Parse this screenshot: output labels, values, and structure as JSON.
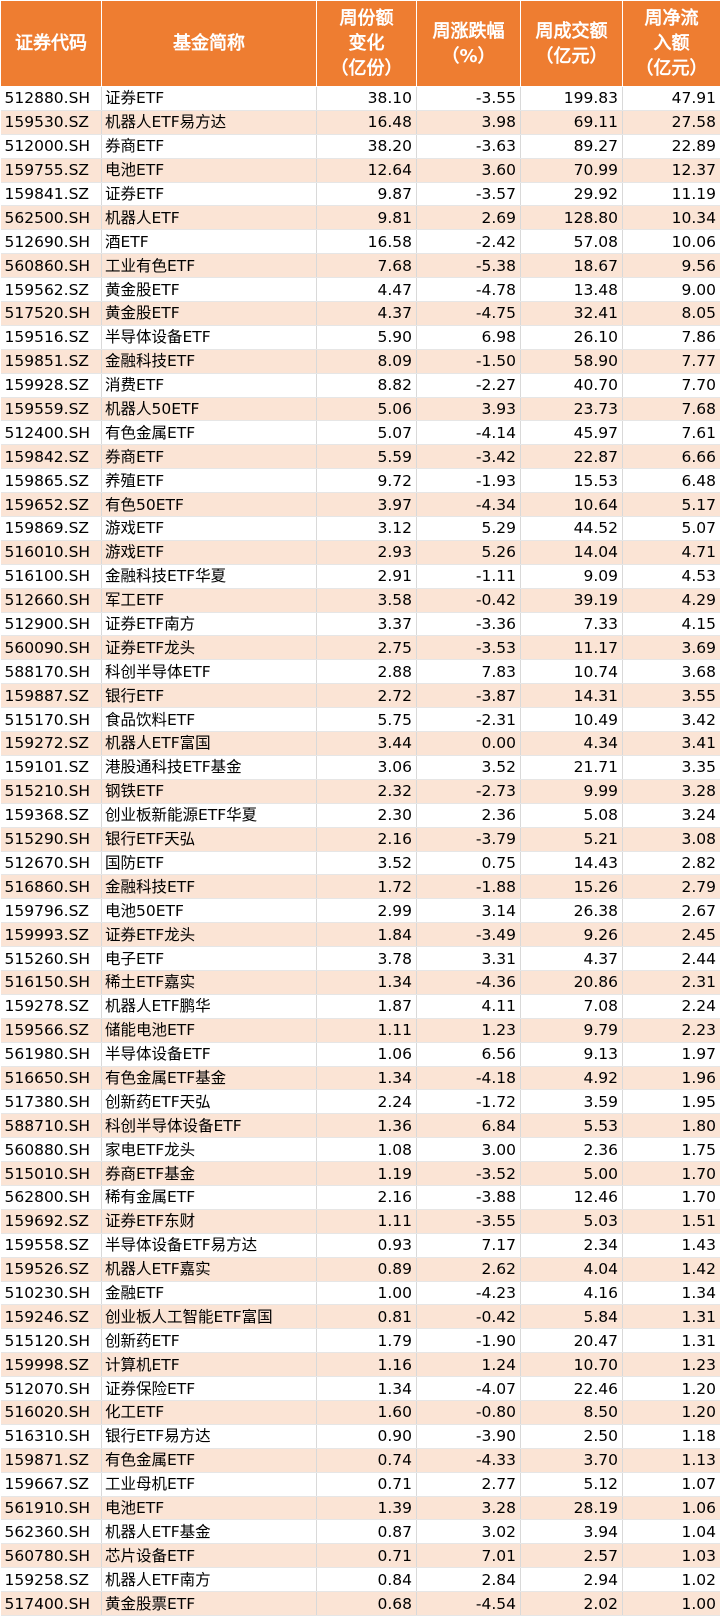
{
  "headers": [
    "证券代码",
    "基金简称",
    "周份额\n变化\n（亿份）",
    "周涨跌幅\n（%）",
    "周成交额\n（亿元）",
    "周净流\n入额\n（亿元）"
  ],
  "rows": [
    [
      "512880.SH",
      "证券ETF",
      "38.10",
      "-3.55",
      "199.83",
      "47.91"
    ],
    [
      "159530.SZ",
      "机器人ETF易方达",
      "16.48",
      "3.98",
      "69.11",
      "27.58"
    ],
    [
      "512000.SH",
      "券商ETF",
      "38.20",
      "-3.63",
      "89.27",
      "22.89"
    ],
    [
      "159755.SZ",
      "电池ETF",
      "12.64",
      "3.60",
      "70.99",
      "12.37"
    ],
    [
      "159841.SZ",
      "证券ETF",
      "9.87",
      "-3.57",
      "29.92",
      "11.19"
    ],
    [
      "562500.SH",
      "机器人ETF",
      "9.81",
      "2.69",
      "128.80",
      "10.34"
    ],
    [
      "512690.SH",
      "酒ETF",
      "16.58",
      "-2.42",
      "57.08",
      "10.06"
    ],
    [
      "560860.SH",
      "工业有色ETF",
      "7.68",
      "-5.38",
      "18.67",
      "9.56"
    ],
    [
      "159562.SZ",
      "黄金股ETF",
      "4.47",
      "-4.78",
      "13.48",
      "9.00"
    ],
    [
      "517520.SH",
      "黄金股ETF",
      "4.37",
      "-4.75",
      "32.41",
      "8.05"
    ],
    [
      "159516.SZ",
      "半导体设备ETF",
      "5.90",
      "6.98",
      "26.10",
      "7.86"
    ],
    [
      "159851.SZ",
      "金融科技ETF",
      "8.09",
      "-1.50",
      "58.90",
      "7.77"
    ],
    [
      "159928.SZ",
      "消费ETF",
      "8.82",
      "-2.27",
      "40.70",
      "7.70"
    ],
    [
      "159559.SZ",
      "机器人50ETF",
      "5.06",
      "3.93",
      "23.73",
      "7.68"
    ],
    [
      "512400.SH",
      "有色金属ETF",
      "5.07",
      "-4.14",
      "45.97",
      "7.61"
    ],
    [
      "159842.SZ",
      "券商ETF",
      "5.59",
      "-3.42",
      "22.87",
      "6.66"
    ],
    [
      "159865.SZ",
      "养殖ETF",
      "9.72",
      "-1.93",
      "15.53",
      "6.48"
    ],
    [
      "159652.SZ",
      "有色50ETF",
      "3.97",
      "-4.34",
      "10.64",
      "5.17"
    ],
    [
      "159869.SZ",
      "游戏ETF",
      "3.12",
      "5.29",
      "44.52",
      "5.07"
    ],
    [
      "516010.SH",
      "游戏ETF",
      "2.93",
      "5.26",
      "14.04",
      "4.71"
    ],
    [
      "516100.SH",
      "金融科技ETF华夏",
      "2.91",
      "-1.11",
      "9.09",
      "4.53"
    ],
    [
      "512660.SH",
      "军工ETF",
      "3.58",
      "-0.42",
      "39.19",
      "4.29"
    ],
    [
      "512900.SH",
      "证券ETF南方",
      "3.37",
      "-3.36",
      "7.33",
      "4.15"
    ],
    [
      "560090.SH",
      "证券ETF龙头",
      "2.75",
      "-3.53",
      "11.17",
      "3.69"
    ],
    [
      "588170.SH",
      "科创半导体ETF",
      "2.88",
      "7.83",
      "10.74",
      "3.68"
    ],
    [
      "159887.SZ",
      "银行ETF",
      "2.72",
      "-3.87",
      "14.31",
      "3.55"
    ],
    [
      "515170.SH",
      "食品饮料ETF",
      "5.75",
      "-2.31",
      "10.49",
      "3.42"
    ],
    [
      "159272.SZ",
      "机器人ETF富国",
      "3.44",
      "0.00",
      "4.34",
      "3.41"
    ],
    [
      "159101.SZ",
      "港股通科技ETF基金",
      "3.06",
      "3.52",
      "21.71",
      "3.35"
    ],
    [
      "515210.SH",
      "钢铁ETF",
      "2.32",
      "-2.73",
      "9.99",
      "3.28"
    ],
    [
      "159368.SZ",
      "创业板新能源ETF华夏",
      "2.30",
      "2.36",
      "5.08",
      "3.24"
    ],
    [
      "515290.SH",
      "银行ETF天弘",
      "2.16",
      "-3.79",
      "5.21",
      "3.08"
    ],
    [
      "512670.SH",
      "国防ETF",
      "3.52",
      "0.75",
      "14.43",
      "2.82"
    ],
    [
      "516860.SH",
      "金融科技ETF",
      "1.72",
      "-1.88",
      "15.26",
      "2.79"
    ],
    [
      "159796.SZ",
      "电池50ETF",
      "2.99",
      "3.14",
      "26.38",
      "2.67"
    ],
    [
      "159993.SZ",
      "证券ETF龙头",
      "1.84",
      "-3.49",
      "9.26",
      "2.45"
    ],
    [
      "515260.SH",
      "电子ETF",
      "3.78",
      "3.31",
      "4.37",
      "2.44"
    ],
    [
      "516150.SH",
      "稀土ETF嘉实",
      "1.34",
      "-4.36",
      "20.86",
      "2.31"
    ],
    [
      "159278.SZ",
      "机器人ETF鹏华",
      "1.87",
      "4.11",
      "7.08",
      "2.24"
    ],
    [
      "159566.SZ",
      "储能电池ETF",
      "1.11",
      "1.23",
      "9.79",
      "2.23"
    ],
    [
      "561980.SH",
      "半导体设备ETF",
      "1.06",
      "6.56",
      "9.13",
      "1.97"
    ],
    [
      "516650.SH",
      "有色金属ETF基金",
      "1.34",
      "-4.18",
      "4.92",
      "1.96"
    ],
    [
      "517380.SH",
      "创新药ETF天弘",
      "2.24",
      "-1.72",
      "3.59",
      "1.95"
    ],
    [
      "588710.SH",
      "科创半导体设备ETF",
      "1.36",
      "6.84",
      "5.53",
      "1.80"
    ],
    [
      "560880.SH",
      "家电ETF龙头",
      "1.08",
      "3.00",
      "2.36",
      "1.75"
    ],
    [
      "515010.SH",
      "券商ETF基金",
      "1.19",
      "-3.52",
      "5.00",
      "1.70"
    ],
    [
      "562800.SH",
      "稀有金属ETF",
      "2.16",
      "-3.88",
      "12.46",
      "1.70"
    ],
    [
      "159692.SZ",
      "证券ETF东财",
      "1.11",
      "-3.55",
      "5.03",
      "1.51"
    ],
    [
      "159558.SZ",
      "半导体设备ETF易方达",
      "0.93",
      "7.17",
      "2.34",
      "1.43"
    ],
    [
      "159526.SZ",
      "机器人ETF嘉实",
      "0.89",
      "2.62",
      "4.04",
      "1.42"
    ],
    [
      "510230.SH",
      "金融ETF",
      "1.00",
      "-4.23",
      "4.16",
      "1.34"
    ],
    [
      "159246.SZ",
      "创业板人工智能ETF富国",
      "0.81",
      "-0.42",
      "5.84",
      "1.31"
    ],
    [
      "515120.SH",
      "创新药ETF",
      "1.79",
      "-1.90",
      "20.47",
      "1.31"
    ],
    [
      "159998.SZ",
      "计算机ETF",
      "1.16",
      "1.24",
      "10.70",
      "1.23"
    ],
    [
      "512070.SH",
      "证券保险ETF",
      "1.34",
      "-4.07",
      "22.46",
      "1.20"
    ],
    [
      "516020.SH",
      "化工ETF",
      "1.60",
      "-0.80",
      "8.50",
      "1.20"
    ],
    [
      "516310.SH",
      "银行ETF易方达",
      "0.90",
      "-3.90",
      "2.50",
      "1.18"
    ],
    [
      "159871.SZ",
      "有色金属ETF",
      "0.74",
      "-4.33",
      "3.70",
      "1.13"
    ],
    [
      "159667.SZ",
      "工业母机ETF",
      "0.71",
      "2.77",
      "5.12",
      "1.07"
    ],
    [
      "561910.SH",
      "电池ETF",
      "1.39",
      "3.28",
      "28.19",
      "1.06"
    ],
    [
      "562360.SH",
      "机器人ETF基金",
      "0.87",
      "3.02",
      "3.94",
      "1.04"
    ],
    [
      "560780.SH",
      "芯片设备ETF",
      "0.71",
      "7.01",
      "2.57",
      "1.03"
    ],
    [
      "159258.SZ",
      "机器人ETF南方",
      "0.84",
      "2.84",
      "2.94",
      "1.02"
    ],
    [
      "517400.SH",
      "黄金股票ETF",
      "0.68",
      "-4.54",
      "2.02",
      "1.00"
    ]
  ]
}
